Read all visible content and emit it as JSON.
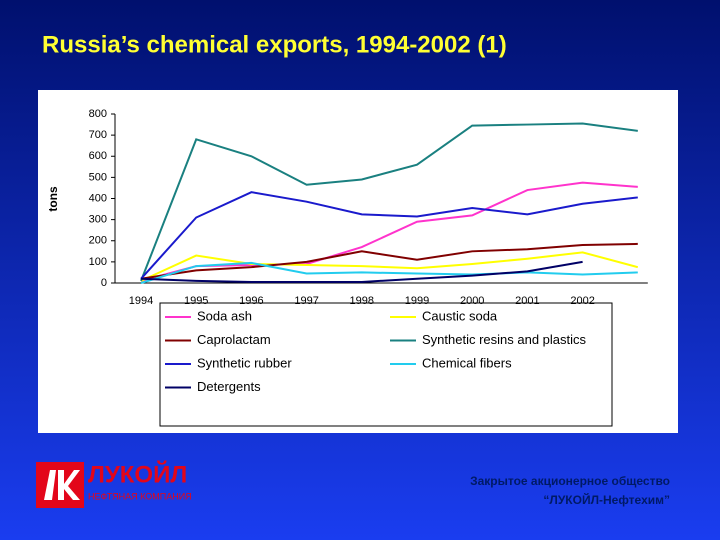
{
  "chart_data": {
    "type": "line",
    "title": "Russia’s chemical exports, 1994-2002 (1)",
    "y_label": "tons",
    "categories": [
      "1994",
      "1995",
      "1996",
      "1997",
      "1998",
      "1999",
      "2000",
      "2001",
      "2002",
      null
    ],
    "series": [
      {
        "name": "Soda ash",
        "color": "#ff33cc",
        "values": [
          10,
          80,
          85,
          90,
          170,
          290,
          320,
          440,
          475,
          455
        ]
      },
      {
        "name": "Caustic soda",
        "color": "#ffff00",
        "values": [
          10,
          130,
          90,
          85,
          80,
          70,
          90,
          115,
          145,
          75
        ]
      },
      {
        "name": "Caprolactam",
        "color": "#800000",
        "values": [
          20,
          60,
          75,
          100,
          150,
          110,
          150,
          160,
          180,
          185
        ]
      },
      {
        "name": "Synthetic resins and plastics",
        "color": "#1a8080",
        "values": [
          10,
          680,
          600,
          465,
          490,
          560,
          745,
          750,
          755,
          720
        ]
      },
      {
        "name": "Synthetic rubber",
        "color": "#1a1acc",
        "values": [
          20,
          310,
          430,
          385,
          325,
          315,
          355,
          325,
          375,
          405
        ]
      },
      {
        "name": "Chemical  fibers",
        "color": "#22ccee",
        "values": [
          0,
          80,
          95,
          45,
          50,
          45,
          40,
          50,
          40,
          50
        ]
      },
      {
        "name": "Detergents",
        "color": "#000066",
        "values": [
          20,
          10,
          5,
          5,
          5,
          20,
          35,
          55,
          100,
          null
        ]
      }
    ],
    "ylim": [
      0,
      800
    ],
    "yticks": [
      0,
      100,
      200,
      300,
      400,
      500,
      600,
      700,
      800
    ]
  },
  "logo": {
    "name": "ЛУКОЙЛ",
    "tagline": "НЕФТЯНАЯ КОМПАНИЯ"
  },
  "company": {
    "line1": "Закрытое акционерное общество",
    "line2": "“ЛУКОЙЛ-Нефтехим”"
  }
}
